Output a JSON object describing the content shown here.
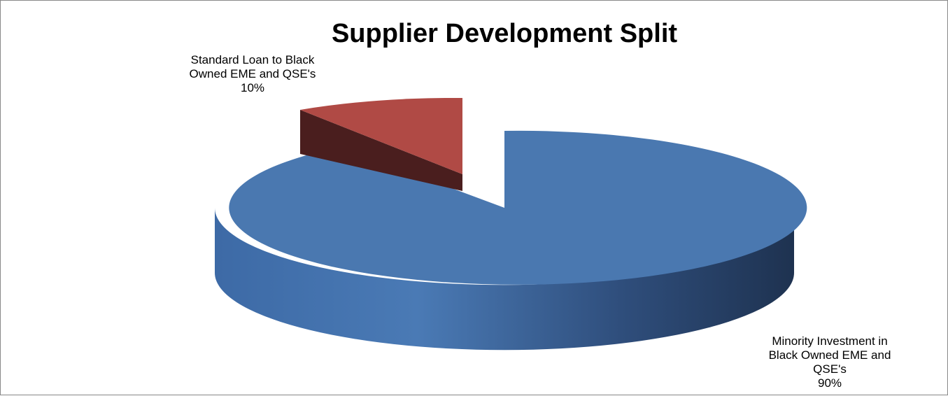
{
  "chart_data": {
    "type": "pie",
    "title": "Supplier Development Split",
    "slices": [
      {
        "name": "Minority Investment in Black Owned EME and QSE's",
        "name_lines": [
          "Minority Investment in",
          "Black Owned EME and",
          "QSE's"
        ],
        "value": 90,
        "value_label": "90%",
        "color": "#4A78B0"
      },
      {
        "name": "Standard Loan to Black Owned EME and QSE's",
        "name_lines": [
          "Standard Loan to Black",
          "Owned EME and QSE's"
        ],
        "value": 10,
        "value_label": "10%",
        "color": "#B04A45"
      }
    ],
    "style": "3d-exploded",
    "legend": "none"
  }
}
